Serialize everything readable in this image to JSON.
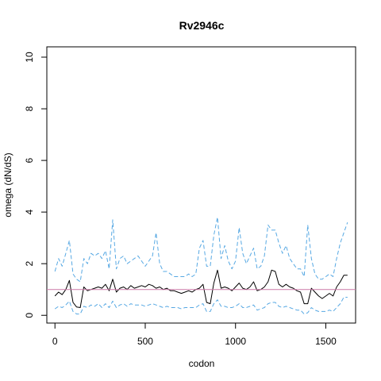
{
  "chart_data": {
    "type": "line",
    "title": "Rv2946c",
    "xlabel": "codon",
    "ylabel": "omega (dN/dS)",
    "xlim": [
      -45,
      1665
    ],
    "ylim": [
      -0.3,
      10.4
    ],
    "x_ticks": [
      0,
      500,
      1000,
      1500
    ],
    "y_ticks": [
      0,
      2,
      4,
      6,
      8,
      10
    ],
    "x_tick_labels": [
      "0",
      "500",
      "1000",
      "1500"
    ],
    "y_tick_labels": [
      "0",
      "2",
      "4",
      "6",
      "8",
      "10"
    ],
    "reference_line": {
      "y": 1,
      "color": "#cc79a7"
    },
    "grid": false,
    "series": [
      {
        "role": "estimate",
        "color": "#000000",
        "style": "solid",
        "x": [
          0,
          20,
          40,
          60,
          80,
          100,
          120,
          140,
          160,
          180,
          200,
          220,
          240,
          260,
          280,
          300,
          320,
          340,
          360,
          380,
          400,
          420,
          440,
          460,
          480,
          500,
          520,
          540,
          560,
          580,
          600,
          620,
          640,
          660,
          680,
          700,
          720,
          740,
          760,
          780,
          800,
          820,
          840,
          860,
          880,
          900,
          920,
          940,
          960,
          980,
          1000,
          1020,
          1040,
          1060,
          1080,
          1100,
          1120,
          1140,
          1160,
          1180,
          1200,
          1220,
          1240,
          1260,
          1280,
          1300,
          1320,
          1340,
          1360,
          1380,
          1400,
          1420,
          1440,
          1460,
          1480,
          1500,
          1520,
          1540,
          1560,
          1580,
          1600,
          1620
        ],
        "y": [
          0.75,
          0.9,
          0.8,
          1.0,
          1.35,
          0.5,
          0.32,
          0.3,
          1.1,
          0.95,
          1.0,
          1.05,
          1.1,
          1.05,
          1.2,
          0.95,
          1.4,
          0.9,
          1.05,
          1.1,
          1.0,
          1.15,
          1.05,
          1.1,
          1.15,
          1.1,
          1.2,
          1.15,
          1.05,
          1.1,
          1.0,
          1.05,
          0.95,
          0.95,
          0.9,
          0.85,
          0.9,
          0.95,
          0.9,
          1.0,
          1.05,
          1.2,
          0.5,
          0.45,
          1.25,
          1.75,
          1.05,
          1.1,
          1.05,
          0.95,
          1.1,
          1.25,
          1.05,
          1.0,
          1.1,
          1.3,
          0.95,
          1.0,
          1.1,
          1.3,
          1.75,
          1.7,
          1.2,
          1.1,
          1.2,
          1.1,
          1.05,
          0.95,
          0.9,
          0.45,
          0.45,
          1.05,
          0.9,
          0.75,
          0.65,
          0.75,
          0.85,
          0.75,
          1.1,
          1.3,
          1.55,
          1.55
        ]
      },
      {
        "role": "upper",
        "color": "#56a8e3",
        "style": "dashed",
        "x": [
          0,
          20,
          40,
          60,
          80,
          100,
          120,
          140,
          160,
          180,
          200,
          220,
          240,
          260,
          280,
          300,
          320,
          340,
          360,
          380,
          400,
          420,
          440,
          460,
          480,
          500,
          520,
          540,
          560,
          580,
          600,
          620,
          640,
          660,
          680,
          700,
          720,
          740,
          760,
          780,
          800,
          820,
          840,
          860,
          880,
          900,
          920,
          940,
          960,
          980,
          1000,
          1020,
          1040,
          1060,
          1080,
          1100,
          1120,
          1140,
          1160,
          1180,
          1200,
          1220,
          1240,
          1260,
          1280,
          1300,
          1320,
          1340,
          1360,
          1380,
          1400,
          1420,
          1440,
          1460,
          1480,
          1500,
          1520,
          1540,
          1560,
          1580,
          1600,
          1620
        ],
        "y": [
          1.7,
          2.2,
          1.9,
          2.4,
          2.9,
          1.6,
          1.4,
          1.3,
          2.2,
          2.0,
          2.4,
          2.3,
          2.4,
          2.2,
          2.5,
          1.8,
          3.7,
          1.8,
          2.2,
          2.3,
          2.0,
          2.1,
          2.2,
          2.3,
          2.1,
          1.9,
          2.1,
          2.3,
          3.2,
          2.0,
          1.7,
          1.7,
          1.6,
          1.5,
          1.5,
          1.5,
          1.5,
          1.6,
          1.5,
          1.6,
          2.6,
          2.9,
          1.9,
          1.9,
          3.1,
          3.8,
          2.2,
          2.7,
          2.1,
          1.8,
          2.1,
          3.4,
          2.4,
          2.0,
          2.3,
          2.6,
          1.8,
          1.9,
          2.3,
          3.5,
          3.3,
          3.3,
          2.8,
          2.4,
          2.7,
          2.2,
          2.0,
          1.8,
          1.8,
          1.5,
          3.5,
          2.2,
          1.6,
          1.4,
          1.4,
          1.5,
          1.6,
          1.5,
          2.2,
          2.8,
          3.2,
          3.6
        ]
      },
      {
        "role": "lower",
        "color": "#56a8e3",
        "style": "dashed",
        "x": [
          0,
          20,
          40,
          60,
          80,
          100,
          120,
          140,
          160,
          180,
          200,
          220,
          240,
          260,
          280,
          300,
          320,
          340,
          360,
          380,
          400,
          420,
          440,
          460,
          480,
          500,
          520,
          540,
          560,
          580,
          600,
          620,
          640,
          660,
          680,
          700,
          720,
          740,
          760,
          780,
          800,
          820,
          840,
          860,
          880,
          900,
          920,
          940,
          960,
          980,
          1000,
          1020,
          1040,
          1060,
          1080,
          1100,
          1120,
          1140,
          1160,
          1180,
          1200,
          1220,
          1240,
          1260,
          1280,
          1300,
          1320,
          1340,
          1360,
          1380,
          1400,
          1420,
          1440,
          1460,
          1480,
          1500,
          1520,
          1540,
          1560,
          1580,
          1600,
          1620
        ],
        "y": [
          0.25,
          0.35,
          0.3,
          0.4,
          0.55,
          0.15,
          0.05,
          0.05,
          0.35,
          0.3,
          0.4,
          0.35,
          0.45,
          0.3,
          0.45,
          0.3,
          0.55,
          0.3,
          0.4,
          0.45,
          0.35,
          0.45,
          0.4,
          0.4,
          0.4,
          0.35,
          0.4,
          0.45,
          0.4,
          0.35,
          0.3,
          0.35,
          0.3,
          0.3,
          0.3,
          0.25,
          0.3,
          0.3,
          0.3,
          0.3,
          0.4,
          0.45,
          0.15,
          0.15,
          0.45,
          0.6,
          0.35,
          0.35,
          0.3,
          0.3,
          0.35,
          0.45,
          0.3,
          0.3,
          0.35,
          0.4,
          0.2,
          0.25,
          0.3,
          0.45,
          0.5,
          0.5,
          0.35,
          0.3,
          0.35,
          0.3,
          0.25,
          0.2,
          0.2,
          0.05,
          0.1,
          0.3,
          0.2,
          0.15,
          0.15,
          0.15,
          0.2,
          0.15,
          0.3,
          0.45,
          0.7,
          0.7
        ]
      }
    ]
  }
}
